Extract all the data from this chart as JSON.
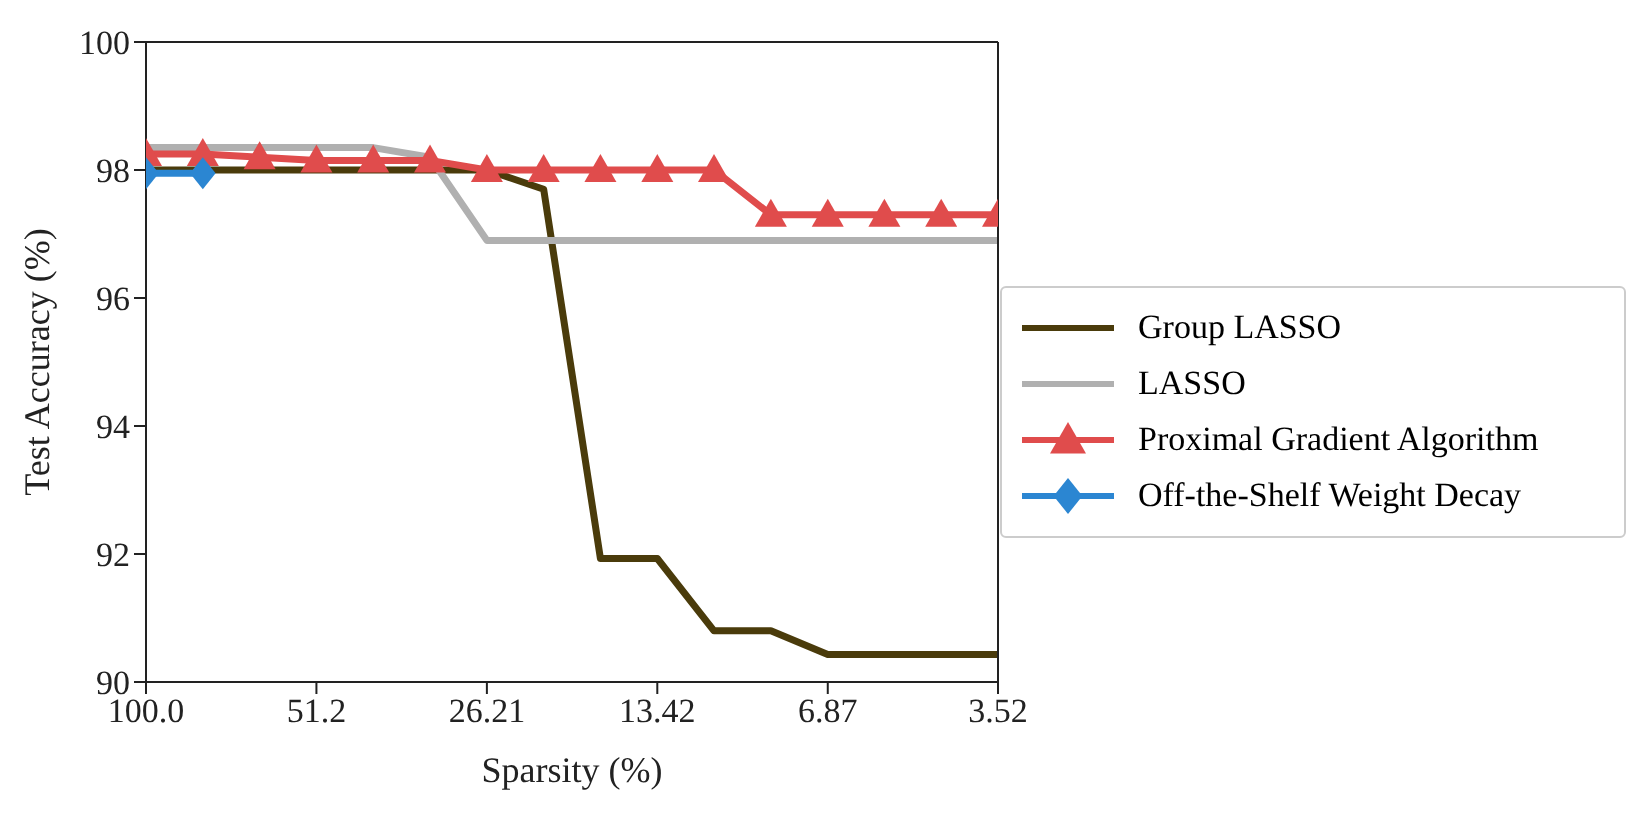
{
  "chart_data": {
    "type": "line",
    "xlabel": "Sparsity (%)",
    "ylabel": "Test Accuracy (%)",
    "log": "x",
    "xlim": [
      100,
      3.52
    ],
    "xticks": [
      {
        "value": 100,
        "label": "100.0"
      },
      51.2,
      26.21,
      13.42,
      6.87,
      3.52
    ],
    "ylim": [
      90,
      100
    ],
    "yticks": [
      90,
      92,
      94,
      96,
      98,
      100
    ],
    "grid": false,
    "legend": "right",
    "line_style": "solid",
    "series": [
      {
        "name": "Group LASSO",
        "color": "#4a3b0b",
        "marker": "none",
        "x": [
          100,
          80,
          64,
          51.2,
          40.96,
          32.77,
          26.21,
          20.97,
          16.78,
          13.42,
          10.74,
          8.59,
          6.87,
          5.5,
          4.4,
          3.52
        ],
        "values": [
          98,
          98,
          98,
          98,
          98,
          98,
          98,
          97.7,
          91.93,
          91.93,
          90.8,
          90.8,
          90.43,
          90.43,
          90.43,
          90.43
        ]
      },
      {
        "name": "LASSO",
        "color": "#b0b0b0",
        "marker": "none",
        "x": [
          100,
          80,
          64,
          51.2,
          40.96,
          32.77,
          26.21,
          20.97,
          16.78,
          13.42,
          10.74,
          8.59,
          6.87,
          5.5,
          4.4,
          3.52
        ],
        "values": [
          98.35,
          98.35,
          98.35,
          98.35,
          98.35,
          98.2,
          96.9,
          96.9,
          96.9,
          96.9,
          96.9,
          96.9,
          96.9,
          96.9,
          96.9,
          96.9
        ]
      },
      {
        "name": "Proximal Gradient Algorithm",
        "color": "#e04c4c",
        "marker": "triangle",
        "x": [
          100,
          80,
          64,
          51.2,
          40.96,
          32.77,
          26.21,
          20.97,
          16.78,
          13.42,
          10.74,
          8.59,
          6.87,
          5.5,
          4.4,
          3.52
        ],
        "values": [
          98.25,
          98.25,
          98.2,
          98.15,
          98.15,
          98.15,
          98,
          98,
          98,
          98,
          98,
          97.3,
          97.3,
          97.3,
          97.3,
          97.3
        ]
      },
      {
        "name": "Off-the-Shelf Weight Decay",
        "color": "#2b86d2",
        "marker": "diamond",
        "x": [
          100,
          80
        ],
        "values": [
          97.95,
          97.95
        ]
      }
    ]
  }
}
